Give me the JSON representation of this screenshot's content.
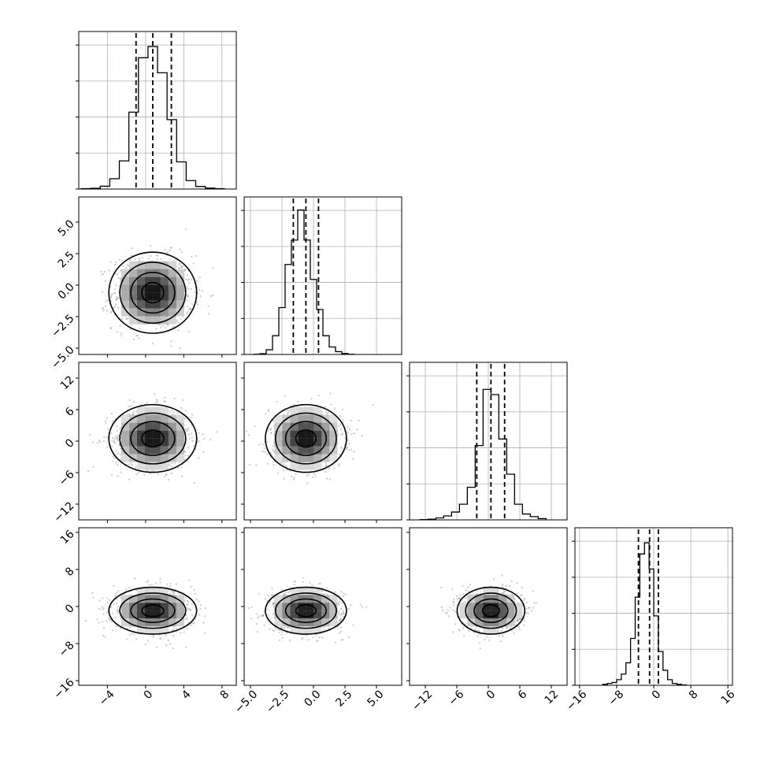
{
  "chart_data": {
    "type": "corner",
    "grid": true,
    "dimensions": [
      {
        "index": 0,
        "range": [
          -7.0,
          9.5
        ],
        "ticks": [
          -4,
          0,
          4,
          8
        ],
        "tick_labels": [
          "−4",
          "0",
          "4",
          "8"
        ],
        "quantiles": [
          -1.0,
          0.75,
          2.7
        ],
        "hist_bin_edges": [
          -6.75,
          -5.75,
          -4.75,
          -3.75,
          -2.75,
          -1.75,
          -0.75,
          0.25,
          1.25,
          2.25,
          3.25,
          4.25,
          5.25,
          6.25,
          7.25,
          8.25
        ],
        "hist_counts": [
          2,
          4,
          15,
          55,
          150,
          410,
          700,
          760,
          620,
          370,
          145,
          45,
          14,
          5,
          2
        ],
        "hist_max": 800
      },
      {
        "index": 1,
        "range": [
          -5.5,
          7.0
        ],
        "ticks": [
          -5.0,
          -2.5,
          0.0,
          2.5,
          5.0
        ],
        "tick_labels": [
          "−5.0",
          "−2.5",
          "0.0",
          "2.5",
          "5.0"
        ],
        "quantiles": [
          -1.6,
          -0.6,
          0.4
        ],
        "hist_bin_edges": [
          -4.75,
          -4.25,
          -3.75,
          -3.25,
          -2.75,
          -2.25,
          -1.75,
          -1.25,
          -0.75,
          -0.25,
          0.25,
          0.75,
          1.25,
          1.75,
          2.25,
          2.75,
          3.25
        ],
        "hist_counts": [
          1,
          4,
          25,
          100,
          250,
          480,
          610,
          770,
          610,
          400,
          240,
          100,
          40,
          15,
          5,
          1
        ],
        "hist_max": 800
      },
      {
        "index": 2,
        "range": [
          -15.0,
          15.0
        ],
        "ticks": [
          -12,
          -6,
          0,
          6,
          12
        ],
        "tick_labels": [
          "−12",
          "−6",
          "0",
          "6",
          "12"
        ],
        "quantiles": [
          -2.2,
          0.5,
          3.1
        ],
        "hist_bin_edges": [
          -13.0,
          -11.5,
          -10.0,
          -8.5,
          -7.0,
          -5.5,
          -4.0,
          -2.5,
          -1.0,
          0.5,
          2.0,
          3.5,
          5.0,
          6.5,
          8.0,
          9.5,
          11.0
        ],
        "hist_counts": [
          2,
          5,
          15,
          30,
          60,
          120,
          250,
          570,
          1000,
          960,
          620,
          350,
          120,
          45,
          25,
          10
        ],
        "hist_max": 1150
      },
      {
        "index": 3,
        "range": [
          -17.0,
          17.0
        ],
        "ticks": [
          -16,
          -8,
          0,
          8,
          16
        ],
        "tick_labels": [
          "−16",
          "−8",
          "0",
          "8",
          "16"
        ],
        "quantiles": [
          -3.3,
          -0.9,
          1.0
        ],
        "hist_bin_edges": [
          -11.0,
          -10.0,
          -9.0,
          -8.0,
          -7.0,
          -6.0,
          -5.0,
          -4.0,
          -3.0,
          -2.0,
          -1.0,
          0.0,
          1.0,
          2.0,
          3.0,
          4.0,
          5.0,
          6.0,
          7.0
        ],
        "hist_counts": [
          5,
          10,
          15,
          30,
          60,
          120,
          250,
          470,
          700,
          760,
          620,
          370,
          180,
          80,
          30,
          10,
          5,
          2
        ],
        "hist_max": 800
      }
    ],
    "pairs": [
      {
        "x": 0,
        "y": 1,
        "center": [
          0.75,
          -0.6
        ],
        "sigma": [
          2.0,
          1.4
        ],
        "rho": 0.0
      },
      {
        "x": 0,
        "y": 2,
        "center": [
          0.75,
          0.5
        ],
        "sigma": [
          2.0,
          2.8
        ],
        "rho": 0.0
      },
      {
        "x": 1,
        "y": 2,
        "center": [
          -0.6,
          0.5
        ],
        "sigma": [
          1.4,
          2.8
        ],
        "rho": 0.0
      },
      {
        "x": 0,
        "y": 3,
        "center": [
          0.75,
          -0.9
        ],
        "sigma": [
          2.0,
          2.2
        ],
        "rho": 0.0
      },
      {
        "x": 1,
        "y": 3,
        "center": [
          -0.6,
          -0.9
        ],
        "sigma": [
          1.4,
          2.2
        ],
        "rho": 0.0
      },
      {
        "x": 2,
        "y": 3,
        "center": [
          0.5,
          -0.9
        ],
        "sigma": [
          2.8,
          2.2
        ],
        "rho": 0.0
      }
    ],
    "contour_levels_sigma": [
      0.5,
      1.0,
      1.5,
      2.0
    ]
  }
}
